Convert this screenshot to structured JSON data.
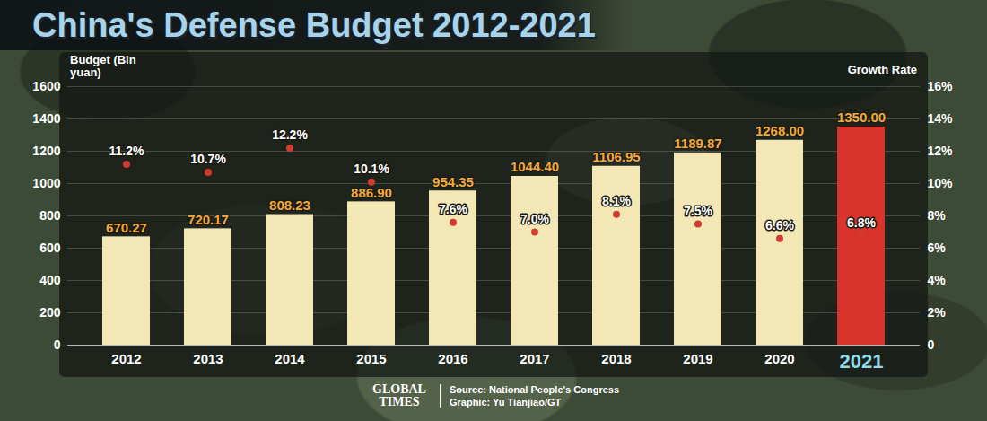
{
  "chart_data": {
    "type": "bar",
    "title": "China's Defense Budget 2012-2021",
    "ylabel": "Budget (Bln yuan)",
    "y2label": "Growth Rate",
    "categories": [
      "2012",
      "2013",
      "2014",
      "2015",
      "2016",
      "2017",
      "2018",
      "2019",
      "2020",
      "2021"
    ],
    "series": [
      {
        "name": "Budget",
        "type": "bar",
        "colors": [
          "#f3e7b5",
          "#f3e7b5",
          "#f3e7b5",
          "#f3e7b5",
          "#f3e7b5",
          "#f3e7b5",
          "#f3e7b5",
          "#f3e7b5",
          "#f3e7b5",
          "#d8342b"
        ],
        "values": [
          670.27,
          720.17,
          808.23,
          886.9,
          954.35,
          1044.4,
          1106.95,
          1189.87,
          1268,
          1350
        ],
        "value_labels": [
          "670.27",
          "720.17",
          "808.23",
          "886.90",
          "954.35",
          "1044.40",
          "1106.95",
          "1189.87",
          "1268.00",
          "1350.00"
        ]
      },
      {
        "name": "Growth Rate",
        "type": "line",
        "axis": "y2",
        "color": "#d33a2f",
        "marker": "circle",
        "values": [
          11.2,
          10.7,
          12.2,
          10.1,
          7.6,
          7.0,
          8.1,
          7.5,
          6.6,
          6.8
        ],
        "value_labels": [
          "11.2%",
          "10.7%",
          "12.2%",
          "10.1%",
          "7.6%",
          "7.0%",
          "8.1%",
          "7.5%",
          "6.6%",
          "6.8%"
        ]
      }
    ],
    "ylim": [
      0,
      1600
    ],
    "yticks": [
      0,
      200,
      400,
      600,
      800,
      1000,
      1200,
      1400,
      1600
    ],
    "y2lim": [
      0,
      16
    ],
    "y2ticks": [
      0,
      {
        "value": 2,
        "label": "2%"
      },
      {
        "value": 4,
        "label": "4%"
      },
      {
        "value": 6,
        "label": "6%"
      },
      {
        "value": 8,
        "label": "8%"
      },
      {
        "value": 10,
        "label": "10%"
      },
      {
        "value": 12,
        "label": "12%"
      },
      {
        "value": 14,
        "label": "14%"
      },
      {
        "value": 16,
        "label": "16%"
      }
    ],
    "grid": true,
    "data_labels": true,
    "annotations": [
      "GLOBAL TIMES",
      "Source: National People's Congress",
      "Graphic: Yu Tianjiao/GT"
    ]
  }
}
